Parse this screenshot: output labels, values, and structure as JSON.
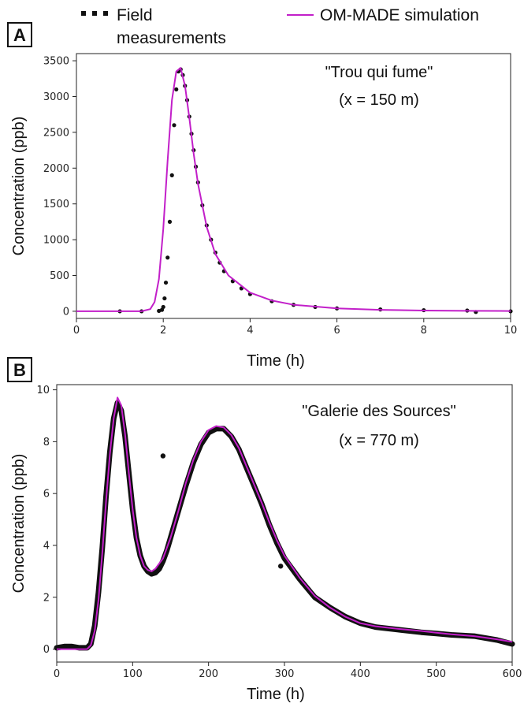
{
  "legend": {
    "field_label_line1": "Field",
    "field_label_line2": "measurements",
    "sim_label": "OM-MADE simulation"
  },
  "colors": {
    "measurement": "#111111",
    "simulation": "#c21fc9"
  },
  "chart_data": [
    {
      "panel": "A",
      "type": "scatter",
      "title": "",
      "annotation_line1": "\"Trou qui fume\"",
      "annotation_line2": "(x = 150 m)",
      "xlabel": "Time (h)",
      "ylabel": "Concentration (ppb)",
      "xlim": [
        0,
        10
      ],
      "ylim": [
        -100,
        3600
      ],
      "xticks": [
        0,
        2,
        4,
        6,
        8,
        10
      ],
      "yticks": [
        0,
        500,
        1000,
        1500,
        2000,
        2500,
        3000,
        3500
      ],
      "grid": false,
      "series": [
        {
          "name": "Field measurements",
          "type": "scatter",
          "x": [
            1.0,
            1.5,
            1.9,
            1.97,
            2.0,
            2.03,
            2.06,
            2.1,
            2.15,
            2.2,
            2.25,
            2.3,
            2.35,
            2.4,
            2.45,
            2.5,
            2.55,
            2.6,
            2.65,
            2.7,
            2.75,
            2.8,
            2.9,
            3.0,
            3.1,
            3.2,
            3.3,
            3.4,
            3.6,
            3.8,
            4.0,
            4.5,
            5.0,
            5.5,
            6.0,
            7.0,
            8.0,
            9.0,
            9.2,
            10.0
          ],
          "y": [
            0,
            0,
            5,
            20,
            60,
            180,
            400,
            750,
            1250,
            1900,
            2600,
            3100,
            3350,
            3380,
            3300,
            3150,
            2950,
            2720,
            2480,
            2250,
            2020,
            1800,
            1480,
            1200,
            1000,
            820,
            680,
            560,
            420,
            320,
            240,
            140,
            90,
            60,
            40,
            25,
            15,
            10,
            -10,
            0
          ]
        },
        {
          "name": "OM-MADE simulation",
          "type": "line",
          "x": [
            0,
            1.0,
            1.5,
            1.7,
            1.8,
            1.9,
            2.0,
            2.1,
            2.2,
            2.3,
            2.4,
            2.5,
            2.6,
            2.7,
            2.8,
            3.0,
            3.2,
            3.5,
            4.0,
            4.5,
            5.0,
            6.0,
            7.0,
            8.0,
            9.0,
            10.0
          ],
          "y": [
            0,
            0,
            0,
            30,
            130,
            450,
            1150,
            2100,
            2950,
            3350,
            3400,
            3150,
            2700,
            2200,
            1780,
            1180,
            800,
            500,
            260,
            150,
            90,
            40,
            20,
            10,
            6,
            3
          ]
        }
      ]
    },
    {
      "panel": "B",
      "type": "scatter",
      "title": "",
      "annotation_line1": "\"Galerie des Sources\"",
      "annotation_line2": "(x = 770 m)",
      "xlabel": "Time (h)",
      "ylabel": "Concentration (ppb)",
      "xlim": [
        0,
        600
      ],
      "ylim": [
        -0.5,
        10.2
      ],
      "xticks": [
        0,
        100,
        200,
        300,
        400,
        500,
        600
      ],
      "yticks": [
        0,
        2,
        4,
        6,
        8,
        10
      ],
      "grid": false,
      "series": [
        {
          "name": "Field measurements",
          "type": "scatter",
          "x": [
            0,
            10,
            20,
            30,
            40,
            45,
            50,
            55,
            60,
            65,
            70,
            75,
            80,
            85,
            90,
            95,
            100,
            105,
            110,
            115,
            120,
            125,
            130,
            135,
            140,
            145,
            150,
            160,
            170,
            180,
            190,
            200,
            210,
            220,
            230,
            240,
            250,
            260,
            270,
            280,
            290,
            300,
            320,
            340,
            360,
            380,
            400,
            420,
            450,
            480,
            500,
            520,
            550,
            580,
            600,
            140,
            295
          ],
          "y": [
            0.05,
            0.1,
            0.1,
            0.05,
            0.05,
            0.2,
            0.9,
            2.2,
            3.9,
            5.9,
            7.6,
            8.9,
            9.5,
            9.2,
            8.2,
            6.8,
            5.4,
            4.3,
            3.6,
            3.2,
            3.0,
            2.9,
            2.95,
            3.1,
            3.4,
            3.8,
            4.3,
            5.3,
            6.3,
            7.2,
            7.9,
            8.35,
            8.5,
            8.5,
            8.2,
            7.7,
            7.0,
            6.3,
            5.6,
            4.8,
            4.1,
            3.5,
            2.7,
            2.0,
            1.6,
            1.25,
            1.0,
            0.85,
            0.75,
            0.65,
            0.6,
            0.55,
            0.5,
            0.35,
            0.2,
            7.45,
            3.2
          ]
        },
        {
          "name": "OM-MADE simulation",
          "type": "line",
          "x": [
            0,
            20,
            40,
            45,
            50,
            55,
            60,
            65,
            70,
            75,
            80,
            85,
            90,
            95,
            100,
            105,
            110,
            115,
            120,
            125,
            130,
            140,
            150,
            160,
            170,
            180,
            190,
            200,
            210,
            220,
            230,
            240,
            250,
            260,
            270,
            280,
            290,
            300,
            320,
            340,
            360,
            380,
            400,
            420,
            450,
            480,
            500,
            520,
            550,
            580,
            600
          ],
          "y": [
            0,
            0,
            0,
            0.15,
            0.7,
            1.9,
            3.7,
            5.7,
            7.5,
            8.9,
            9.7,
            9.4,
            8.3,
            6.8,
            5.4,
            4.3,
            3.6,
            3.2,
            3.05,
            3.0,
            3.1,
            3.5,
            4.3,
            5.3,
            6.4,
            7.3,
            8.0,
            8.45,
            8.6,
            8.55,
            8.25,
            7.75,
            7.05,
            6.35,
            5.65,
            4.9,
            4.2,
            3.6,
            2.75,
            2.05,
            1.6,
            1.25,
            1.0,
            0.88,
            0.78,
            0.7,
            0.63,
            0.57,
            0.5,
            0.38,
            0.28
          ]
        }
      ]
    }
  ]
}
